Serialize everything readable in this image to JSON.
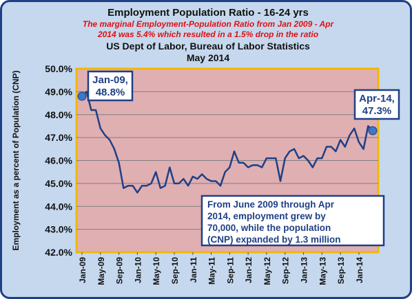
{
  "chart_data": {
    "type": "line",
    "title": "Employment Population Ratio - 16-24 yrs",
    "subtitle_lines": [
      "The marginal Employment-Population Ratio from Jan 2009 - Apr",
      "2014 was 5.4% which resulted in a 1.5% drop in the ratio"
    ],
    "source_lines": [
      "US Dept of Labor, Bureau of Labor Statistics",
      "May 2014"
    ],
    "ylabel": "Employment as a percent of Population (CNP)",
    "xlabel": "",
    "ylim": [
      42.0,
      50.0
    ],
    "ytick_step": 1.0,
    "yticks": [
      "42.0%",
      "43.0%",
      "44.0%",
      "45.0%",
      "46.0%",
      "47.0%",
      "48.0%",
      "49.0%",
      "50.0%"
    ],
    "x_tick_labels": [
      "Jan-09",
      "May-09",
      "Sep-09",
      "Jan-10",
      "May-10",
      "Sep-10",
      "Jan-11",
      "May-11",
      "Sep-11",
      "Jan-12",
      "May-12",
      "Sep-12",
      "Jan-13",
      "May-13",
      "Sep-13",
      "Jan-14"
    ],
    "x_tick_every": 4,
    "x": [
      "Jan-09",
      "Feb-09",
      "Mar-09",
      "Apr-09",
      "May-09",
      "Jun-09",
      "Jul-09",
      "Aug-09",
      "Sep-09",
      "Oct-09",
      "Nov-09",
      "Dec-09",
      "Jan-10",
      "Feb-10",
      "Mar-10",
      "Apr-10",
      "May-10",
      "Jun-10",
      "Jul-10",
      "Aug-10",
      "Sep-10",
      "Oct-10",
      "Nov-10",
      "Dec-10",
      "Jan-11",
      "Feb-11",
      "Mar-11",
      "Apr-11",
      "May-11",
      "Jun-11",
      "Jul-11",
      "Aug-11",
      "Sep-11",
      "Oct-11",
      "Nov-11",
      "Dec-11",
      "Jan-12",
      "Feb-12",
      "Mar-12",
      "Apr-12",
      "May-12",
      "Jun-12",
      "Jul-12",
      "Aug-12",
      "Sep-12",
      "Oct-12",
      "Nov-12",
      "Dec-12",
      "Jan-13",
      "Feb-13",
      "Mar-13",
      "Apr-13",
      "May-13",
      "Jun-13",
      "Jul-13",
      "Aug-13",
      "Sep-13",
      "Oct-13",
      "Nov-13",
      "Dec-13",
      "Jan-14",
      "Feb-14",
      "Mar-14",
      "Apr-14"
    ],
    "series": [
      {
        "values": [
          48.8,
          49.0,
          48.2,
          48.2,
          47.4,
          47.1,
          46.9,
          46.5,
          45.9,
          44.8,
          44.9,
          44.9,
          44.6,
          44.9,
          44.9,
          45.0,
          45.5,
          44.8,
          44.9,
          45.7,
          45.0,
          45.0,
          45.2,
          44.9,
          45.3,
          45.2,
          45.4,
          45.2,
          45.1,
          45.1,
          44.9,
          45.5,
          45.7,
          46.4,
          45.9,
          45.9,
          45.7,
          45.8,
          45.8,
          45.7,
          46.1,
          46.1,
          46.1,
          45.1,
          46.1,
          46.4,
          46.5,
          46.1,
          46.2,
          46.0,
          45.7,
          46.1,
          46.1,
          46.6,
          46.6,
          46.4,
          46.9,
          46.6,
          47.1,
          47.4,
          46.8,
          46.5,
          47.5,
          47.3
        ],
        "color": "#1f3f86"
      }
    ],
    "grid": true,
    "plot_background": "#e0afb2",
    "plot_border_color": "#f2b800",
    "annotations": [
      {
        "lines": [
          "Jan-09,",
          "48.8%"
        ],
        "x": "Jan-09",
        "y": 48.8
      },
      {
        "lines": [
          "Apr-14,",
          "47.3%"
        ],
        "x": "Apr-14",
        "y": 47.3
      }
    ],
    "note_lines": [
      "From June 2009 through Apr",
      "2014,  employment grew by",
      "70,000, while the population",
      "(CNP) expanded by  1.3 million"
    ]
  },
  "colors": {
    "frame_border": "#1f3f86",
    "frame_background": "#c5d8ee",
    "subtitle": "#e01010",
    "callout_border": "#1f3f86",
    "note_text": "#1f3f86",
    "marker": "#3a78c8"
  }
}
